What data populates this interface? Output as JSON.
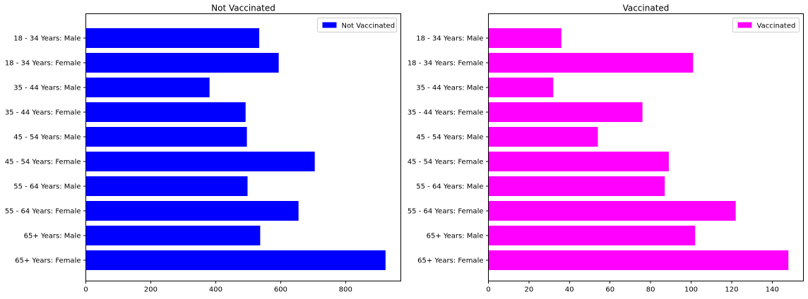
{
  "chart_data": [
    {
      "type": "bar",
      "orientation": "horizontal",
      "title": "Not Vaccinated",
      "categories": [
        "18 - 34 Years: Male",
        "18 - 34 Years: Female",
        "35 - 44 Years: Male",
        "35 - 44 Years: Female",
        "45 - 54 Years: Male",
        "45 - 54 Years: Female",
        "55 - 64 Years: Male",
        "55 - 64 Years: Female",
        "65+ Years: Male",
        "65+ Years: Female"
      ],
      "series": [
        {
          "name": "Not Vaccinated",
          "color": "#0000ff",
          "values": [
            534,
            594,
            381,
            492,
            496,
            705,
            498,
            655,
            537,
            923
          ]
        }
      ],
      "xticks": [
        0,
        200,
        400,
        600,
        800
      ],
      "xlim": [
        0,
        970
      ],
      "legend_position": "top-right",
      "grid": false
    },
    {
      "type": "bar",
      "orientation": "horizontal",
      "title": "Vaccinated",
      "categories": [
        "18 - 34 Years: Male",
        "18 - 34 Years: Female",
        "35 - 44 Years: Male",
        "35 - 44 Years: Female",
        "45 - 54 Years: Male",
        "45 - 54 Years: Female",
        "55 - 64 Years: Male",
        "55 - 64 Years: Female",
        "65+ Years: Male",
        "65+ Years: Female"
      ],
      "series": [
        {
          "name": "Vaccinated",
          "color": "#ff00ff",
          "values": [
            36,
            101,
            32,
            76,
            54,
            89,
            87,
            122,
            102,
            148
          ]
        }
      ],
      "xticks": [
        0,
        20,
        40,
        60,
        80,
        100,
        120,
        140
      ],
      "xlim": [
        0,
        155.4
      ],
      "legend_position": "top-right",
      "grid": false
    }
  ]
}
